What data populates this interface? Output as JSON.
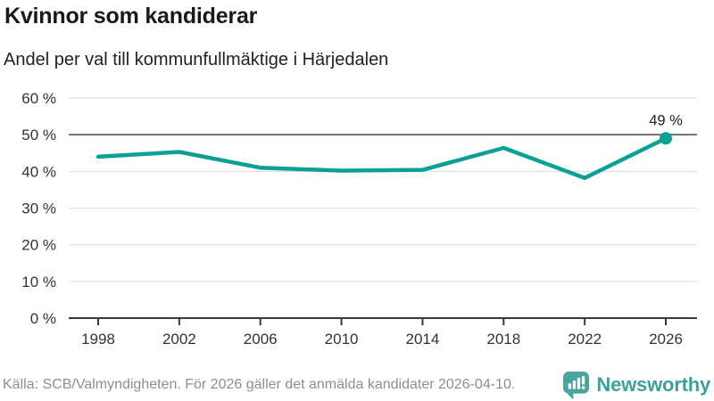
{
  "chart_data": {
    "type": "line",
    "title": "Kvinnor som kandiderar",
    "subtitle": "Andel per val till kommunfullmäktige i Härjedalen",
    "x": [
      1998,
      2002,
      2006,
      2010,
      2014,
      2018,
      2022,
      2026
    ],
    "xtick_labels": [
      "1998",
      "2002",
      "2006",
      "2010",
      "2014",
      "2018",
      "2022",
      "2026"
    ],
    "values": [
      44,
      45.3,
      41,
      40.2,
      40.4,
      46.4,
      38.2,
      49
    ],
    "ylim": [
      0,
      60
    ],
    "yticks": [
      0,
      10,
      20,
      30,
      40,
      50,
      60
    ],
    "ytick_labels": [
      "0 %",
      "10 %",
      "20 %",
      "30 %",
      "40 %",
      "50 %",
      "60 %"
    ],
    "reference_line": 50,
    "grid": true,
    "legend": "none",
    "last_point_label": "49 %",
    "marker": "last-point-only"
  },
  "footer": {
    "source": "Källa: SCB/Valmyndigheten. För 2026 gäller det anmälda kandidater 2026-04-10.",
    "brand": "Newsworthy"
  },
  "colors": {
    "line": "#0aa096",
    "brand": "#3f9f9b",
    "logo": "#4aa5a0",
    "grid": "#dcdcdc",
    "reference": "#6f6f6f",
    "axis": "#3a3a3a",
    "tick_text": "#333333",
    "footer_text": "#8b8e96"
  }
}
